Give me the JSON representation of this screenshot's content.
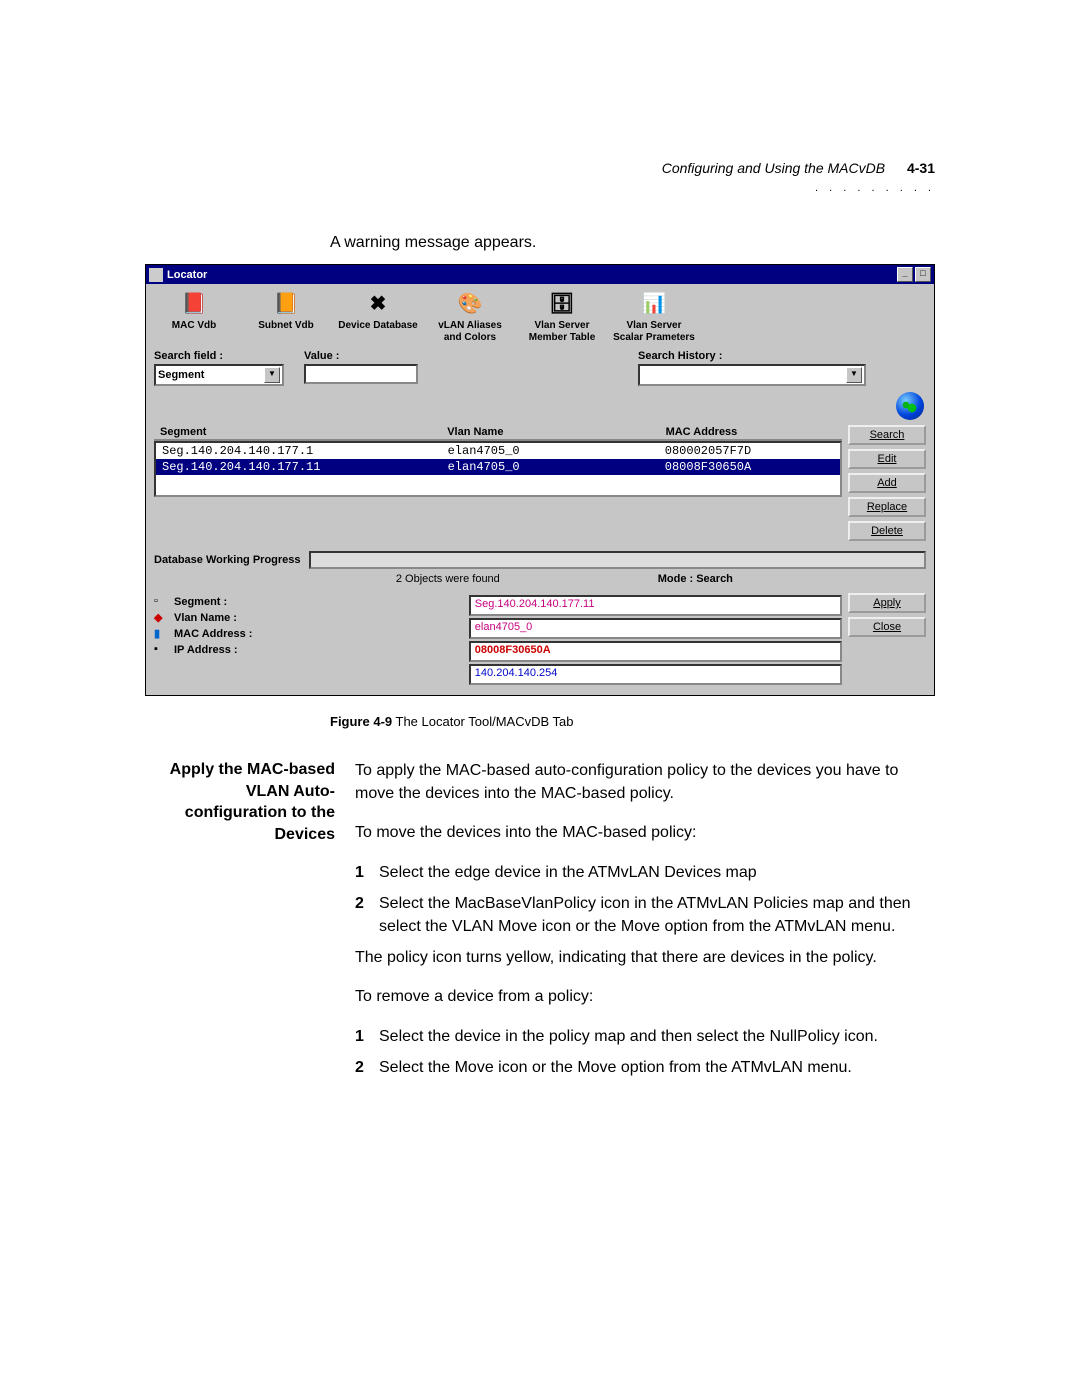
{
  "header": {
    "title": "Configuring and Using the MACvDB",
    "page_num": "4-31",
    "dots": ". . . . . . . . ."
  },
  "intro": "A warning message appears.",
  "win": {
    "title": "Locator",
    "toolbar": [
      {
        "label": "MAC Vdb",
        "icon": "📕"
      },
      {
        "label": "Subnet Vdb",
        "icon": "📙"
      },
      {
        "label": "Device Database",
        "icon": "✖"
      },
      {
        "label": "vLAN Aliases\nand Colors",
        "icon": "🎨"
      },
      {
        "label": "Vlan Server\nMember Table",
        "icon": "🗄"
      },
      {
        "label": "Vlan Server\nScalar Prameters",
        "icon": "📊"
      }
    ],
    "search": {
      "field_label": "Search field :",
      "field_value": "Segment",
      "value_label": "Value :",
      "history_label": "Search History :"
    },
    "columns": {
      "seg": "Segment",
      "vlan": "Vlan Name",
      "mac": "MAC Address"
    },
    "rows": [
      {
        "seg": "Seg.140.204.140.177.1",
        "vlan": "elan4705_0",
        "mac": "080002057F7D",
        "selected": false
      },
      {
        "seg": "Seg.140.204.140.177.11",
        "vlan": "elan4705_0",
        "mac": "08008F30650A",
        "selected": true
      }
    ],
    "buttons_side": [
      "Search",
      "Edit",
      "Add",
      "Replace",
      "Delete"
    ],
    "progress_label": "Database Working Progress",
    "status_mid": "2 Objects were found",
    "status_mode": "Mode : Search",
    "detail_labels": {
      "seg": "Segment :",
      "vlan": "Vlan Name :",
      "mac": "MAC Address :",
      "ip": "IP Address :"
    },
    "detail_values": {
      "seg": "Seg.140.204.140.177.11",
      "vlan": "elan4705_0",
      "mac": "08008F30650A",
      "ip": "140.204.140.254"
    },
    "buttons_bottom": [
      "Apply",
      "Close"
    ]
  },
  "caption": {
    "bold": "Figure 4-9",
    "rest": "   The Locator Tool/MACvDB Tab"
  },
  "section": {
    "heading": "Apply the MAC-based VLAN Auto-configuration to the Devices",
    "p1": "To apply the MAC-based auto-configuration policy to the devices you have to move the devices into the MAC-based policy.",
    "p2": "To move the devices into the MAC-based policy:",
    "s1": {
      "n": "1",
      "t": "Select the edge device in the ATMvLAN Devices map"
    },
    "s2": {
      "n": "2",
      "t": "Select the MacBaseVlanPolicy icon in the ATMvLAN Policies map and then select the VLAN Move icon or the Move option from the ATMvLAN menu."
    },
    "p3": "The policy icon turns yellow, indicating that there are devices in the policy.",
    "p4": "To remove a device from a policy:",
    "r1": {
      "n": "1",
      "t": "Select the device in the policy map and then select the NullPolicy icon."
    },
    "r2": {
      "n": "2",
      "t": "Select the Move icon or the Move option from the ATMvLAN menu."
    }
  }
}
